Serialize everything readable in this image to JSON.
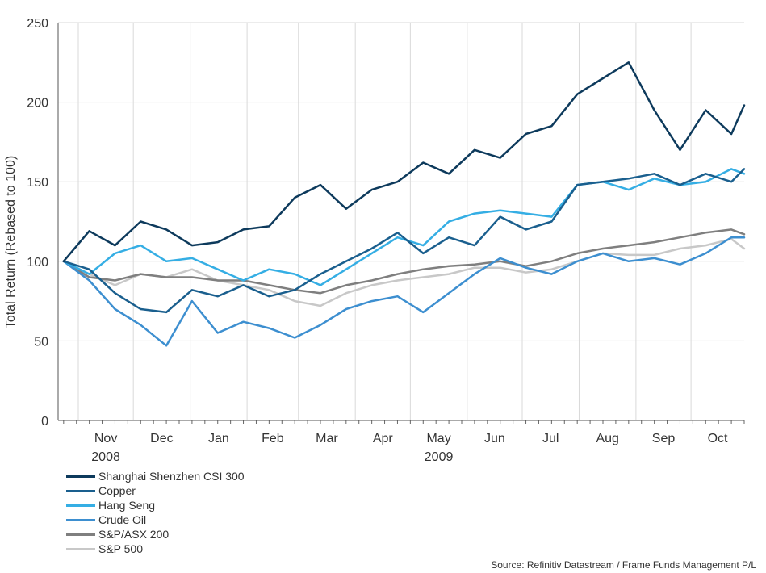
{
  "chart_data": {
    "type": "line",
    "title": "",
    "ylabel": "Total Return (Rebased to 100)",
    "xlabel": "",
    "ylim": [
      0,
      250
    ],
    "yticks": [
      0,
      50,
      100,
      150,
      200,
      250
    ],
    "grid": true,
    "legend_position": "bottom-left",
    "months": [
      "Nov",
      "Dec",
      "Jan",
      "Feb",
      "Mar",
      "Apr",
      "May",
      "Jun",
      "Jul",
      "Aug",
      "Sep",
      "Oct"
    ],
    "years": [
      {
        "label": "2008",
        "at_month": "Nov"
      },
      {
        "label": "2009",
        "at_month": "May"
      }
    ],
    "x": [
      "2008-10-24",
      "2008-11-07",
      "2008-11-21",
      "2008-12-05",
      "2008-12-19",
      "2009-01-02",
      "2009-01-16",
      "2009-01-30",
      "2009-02-13",
      "2009-02-27",
      "2009-03-13",
      "2009-03-27",
      "2009-04-10",
      "2009-04-24",
      "2009-05-08",
      "2009-05-22",
      "2009-06-05",
      "2009-06-19",
      "2009-07-03",
      "2009-07-17",
      "2009-07-31",
      "2009-08-14",
      "2009-08-28",
      "2009-09-11",
      "2009-09-25",
      "2009-10-09",
      "2009-10-23",
      "2009-10-30"
    ],
    "series": [
      {
        "name": "Shanghai Shenzhen CSI 300",
        "color": "#0d3a5c",
        "values": [
          100,
          119,
          110,
          125,
          120,
          110,
          112,
          120,
          122,
          140,
          148,
          133,
          145,
          150,
          162,
          155,
          170,
          165,
          180,
          185,
          205,
          215,
          225,
          195,
          170,
          195,
          180,
          198
        ]
      },
      {
        "name": "Copper",
        "color": "#1a5f8e",
        "values": [
          100,
          95,
          80,
          70,
          68,
          82,
          78,
          85,
          78,
          82,
          92,
          100,
          108,
          118,
          105,
          115,
          110,
          128,
          120,
          125,
          148,
          150,
          152,
          155,
          148,
          155,
          150,
          158
        ]
      },
      {
        "name": "Hang Seng",
        "color": "#35aee4",
        "values": [
          100,
          92,
          105,
          110,
          100,
          102,
          95,
          88,
          95,
          92,
          85,
          95,
          105,
          115,
          110,
          125,
          130,
          132,
          130,
          128,
          148,
          150,
          145,
          152,
          148,
          150,
          158,
          155
        ]
      },
      {
        "name": "Crude Oil",
        "color": "#3d8fd0",
        "values": [
          100,
          88,
          70,
          60,
          47,
          75,
          55,
          62,
          58,
          52,
          60,
          70,
          75,
          78,
          68,
          80,
          92,
          102,
          96,
          92,
          100,
          105,
          100,
          102,
          98,
          105,
          115,
          115
        ]
      },
      {
        "name": "S&P/ASX 200",
        "color": "#7f7f7f",
        "values": [
          100,
          90,
          88,
          92,
          90,
          90,
          88,
          88,
          85,
          82,
          80,
          85,
          88,
          92,
          95,
          97,
          98,
          100,
          97,
          100,
          105,
          108,
          110,
          112,
          115,
          118,
          120,
          117
        ]
      },
      {
        "name": "S&P 500",
        "color": "#c8c8c8",
        "values": [
          100,
          92,
          85,
          92,
          90,
          95,
          88,
          85,
          82,
          75,
          72,
          80,
          85,
          88,
          90,
          92,
          96,
          96,
          93,
          95,
          100,
          105,
          104,
          104,
          108,
          110,
          114,
          108
        ]
      }
    ]
  },
  "source_text": "Source: Refinitiv Datastream / Frame Funds Management P/L"
}
